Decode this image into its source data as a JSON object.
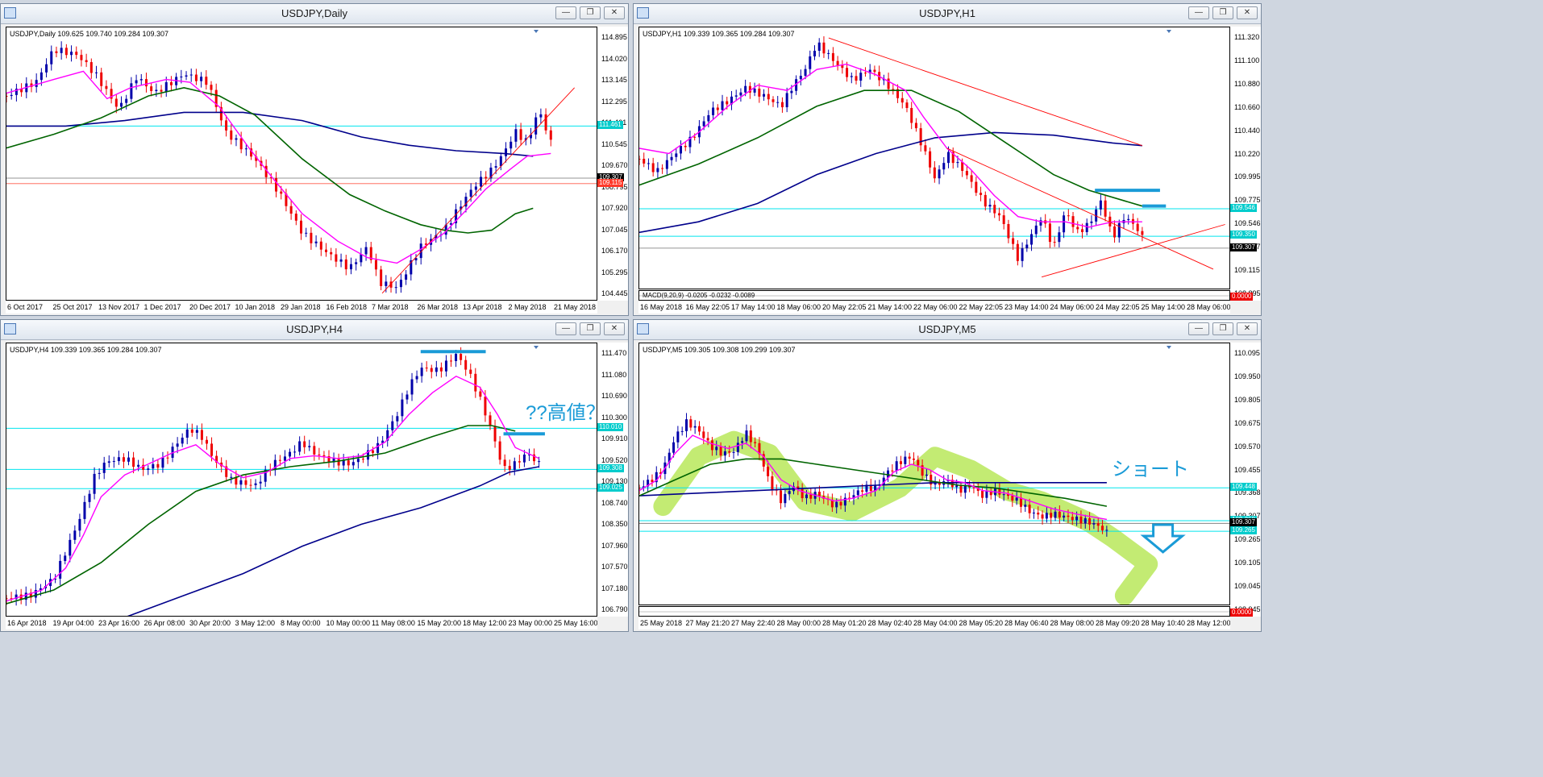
{
  "windows": {
    "daily": {
      "title": "USDJPY,Daily",
      "info": "USDJPY,Daily  109.625 109.740 109.284 109.307",
      "y_labels": [
        "114.895",
        "114.020",
        "113.145",
        "112.295",
        "111.461",
        "110.545",
        "109.670",
        "108.795",
        "107.920",
        "107.045",
        "106.170",
        "105.295",
        "104.445"
      ],
      "x_labels": [
        "6 Oct 2017",
        "25 Oct 2017",
        "13 Nov 2017",
        "1 Dec 2017",
        "20 Dec 2017",
        "10 Jan 2018",
        "29 Jan 2018",
        "16 Feb 2018",
        "7 Mar 2018",
        "26 Mar 2018",
        "13 Apr 2018",
        "2 May 2018",
        "21 May 2018"
      ],
      "tags": [
        {
          "text": "111.461",
          "color": "#00cccc"
        },
        {
          "text": "109.307",
          "color": "#000000"
        },
        {
          "text": "109.115",
          "color": "#ff3a2a"
        }
      ]
    },
    "h1": {
      "title": "USDJPY,H1",
      "info": "USDJPY,H1  109.339 109.365 109.284 109.307",
      "y_labels": [
        "111.320",
        "111.100",
        "110.880",
        "110.660",
        "110.440",
        "110.220",
        "109.995",
        "109.775",
        "109.546",
        "109.307",
        "109.115",
        "108.895"
      ],
      "x_labels": [
        "16 May 2018",
        "16 May 22:05",
        "17 May 14:00",
        "18 May 06:00",
        "20 May 22:05",
        "21 May 14:00",
        "22 May 06:00",
        "22 May 22:05",
        "23 May 14:00",
        "24 May 06:00",
        "24 May 22:05",
        "25 May 14:00",
        "28 May 06:00"
      ],
      "tags": [
        {
          "text": "109.546",
          "color": "#00cccc"
        },
        {
          "text": "109.350",
          "color": "#00cccc"
        },
        {
          "text": "109.307",
          "color": "#000000"
        }
      ],
      "macd": "MACD(9,20,9) -0.0205 -0.0232 -0.0089",
      "macd_value": "0.0000"
    },
    "h4": {
      "title": "USDJPY,H4",
      "info": "USDJPY,H4  109.339 109.365 109.284 109.307",
      "y_labels": [
        "111.470",
        "111.080",
        "110.690",
        "110.300",
        "109.910",
        "109.520",
        "109.130",
        "108.740",
        "108.350",
        "107.960",
        "107.570",
        "107.180",
        "106.790"
      ],
      "x_labels": [
        "16 Apr 2018",
        "19 Apr 04:00",
        "23 Apr 16:00",
        "26 Apr 08:00",
        "30 Apr 20:00",
        "3 May 12:00",
        "8 May 00:00",
        "10 May 00:00",
        "11 May 08:00",
        "15 May 20:00",
        "18 May 12:00",
        "23 May 00:00",
        "25 May 16:00"
      ],
      "tags": [
        {
          "text": "110.010",
          "color": "#00cccc"
        },
        {
          "text": "109.308",
          "color": "#00cccc"
        },
        {
          "text": "109.025",
          "color": "#00cccc"
        }
      ],
      "annotation": "??高値？"
    },
    "m5": {
      "title": "USDJPY,M5",
      "info": "USDJPY,M5  109.305 109.308 109.299 109.307",
      "y_labels": [
        "110.095",
        "109.950",
        "109.805",
        "109.675",
        "109.570",
        "109.455",
        "109.368",
        "109.307",
        "109.265",
        "109.105",
        "109.045",
        "108.945"
      ],
      "x_labels": [
        "25 May 2018",
        "27 May 21:20",
        "27 May 22:40",
        "28 May 00:00",
        "28 May 01:20",
        "28 May 02:40",
        "28 May 04:00",
        "28 May 05:20",
        "28 May 06:40",
        "28 May 08:00",
        "28 May 09:20",
        "28 May 10:40",
        "28 May 12:00"
      ],
      "tags": [
        {
          "text": "109.448",
          "color": "#00cccc"
        },
        {
          "text": "109.368",
          "color": "#00cccc"
        },
        {
          "text": "109.307",
          "color": "#000000"
        },
        {
          "text": "109.265",
          "color": "#00cccc"
        }
      ],
      "annotation": "ショート",
      "macd_value": "0.0000"
    }
  },
  "buttons": {
    "minimize": "—",
    "restore": "❐",
    "close": "✕"
  },
  "colors": {
    "bull": "#0000aa",
    "bear": "#ee0000",
    "ma_fast": "#ff00ff",
    "ma_mid": "#006400",
    "ma_slow": "#00008b",
    "level": "#00e5ee",
    "trend": "#ff0000",
    "highlight": "#b9e85a",
    "annot": "#1a9bd7"
  }
}
